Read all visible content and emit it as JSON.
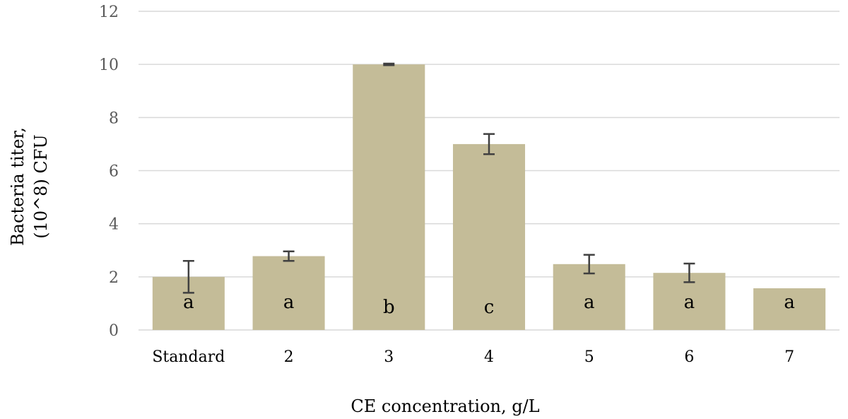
{
  "chart_data": {
    "type": "bar",
    "categories": [
      "Standard",
      "2",
      "3",
      "4",
      "5",
      "6",
      "7"
    ],
    "values": [
      2.0,
      2.78,
      10.0,
      7.0,
      2.48,
      2.15,
      1.57
    ],
    "errors": [
      0.6,
      0.18,
      0.03,
      0.38,
      0.35,
      0.35,
      0
    ],
    "labels": [
      "a",
      "a",
      "b",
      "c",
      "a",
      "a",
      "a"
    ],
    "xlabel": "CE concentration, g/L",
    "ylabel_lines": [
      "Bacteria titer,",
      "(10^8) CFU"
    ],
    "ylim": [
      0,
      12
    ],
    "yticks": [
      0,
      2,
      4,
      6,
      8,
      10,
      12
    ],
    "grid": true,
    "legend": "none",
    "colors": {
      "bar": "#c4bc98",
      "error": "#404040",
      "grid": "#d9d9d9"
    }
  }
}
